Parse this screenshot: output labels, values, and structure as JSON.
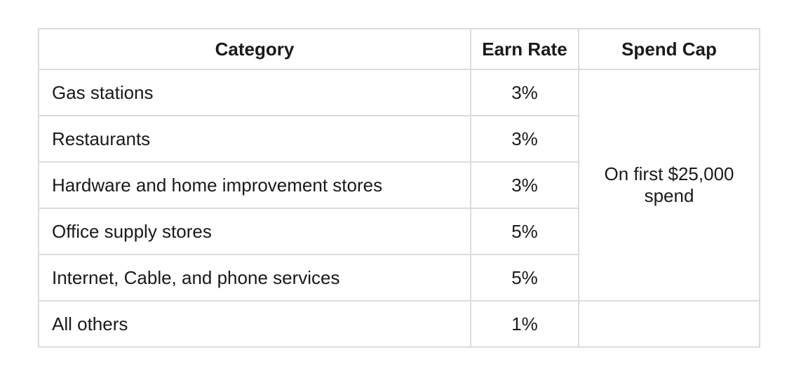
{
  "table": {
    "headers": {
      "category": "Category",
      "earn_rate": "Earn Rate",
      "spend_cap": "Spend Cap"
    },
    "rows": [
      {
        "category": "Gas stations",
        "earn_rate": "3%"
      },
      {
        "category": "Restaurants",
        "earn_rate": "3%"
      },
      {
        "category": "Hardware and home improvement stores",
        "earn_rate": "3%"
      },
      {
        "category": "Office supply stores",
        "earn_rate": "5%"
      },
      {
        "category": "Internet, Cable, and phone services",
        "earn_rate": "5%"
      },
      {
        "category": "All others",
        "earn_rate": "1%"
      }
    ],
    "spend_cap": {
      "line1": "On first $25,000",
      "line2": "spend"
    },
    "all_others_cap": ""
  }
}
